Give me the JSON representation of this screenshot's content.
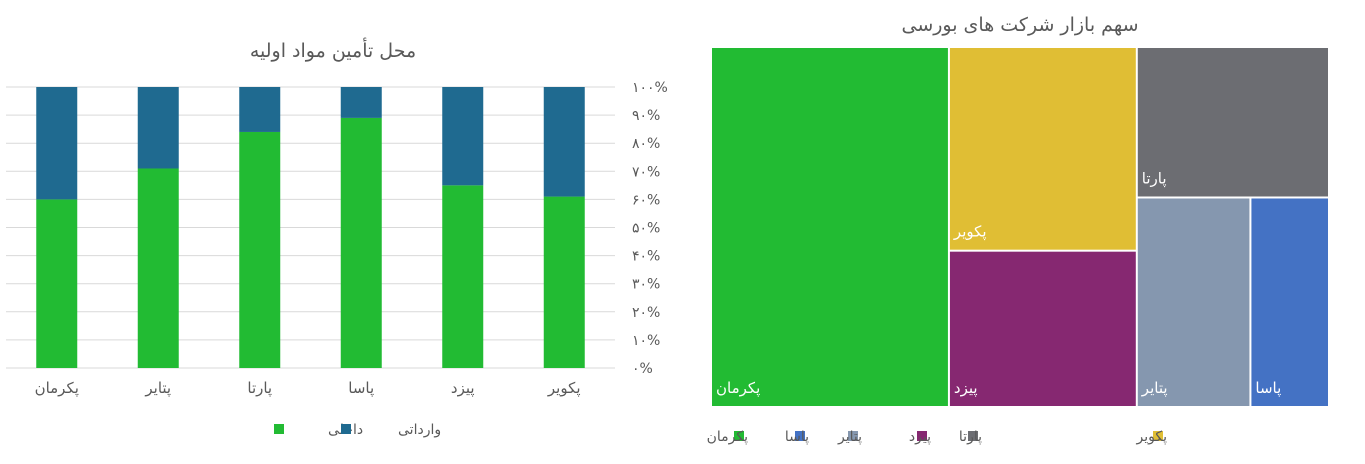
{
  "chart_data": [
    {
      "type": "bar",
      "stacked": "percent",
      "title": "محل تأمین مواد اولیه",
      "categories": [
        "پکرمان",
        "پتایر",
        "پارتا",
        "پاسا",
        "پیزد",
        "پکویر"
      ],
      "series": [
        {
          "name": "داخلی",
          "color": "#22BB33",
          "values": [
            60,
            71,
            84,
            89,
            65,
            61
          ]
        },
        {
          "name": "وارداتی",
          "color": "#1F6A90",
          "values": [
            40,
            29,
            16,
            11,
            35,
            39
          ]
        }
      ],
      "ylim": [
        0,
        100
      ],
      "yticks": [
        "۰%",
        "۱۰%",
        "۲۰%",
        "۳۰%",
        "۴۰%",
        "۵۰%",
        "۶۰%",
        "۷۰%",
        "۸۰%",
        "۹۰%",
        "۱۰۰%"
      ],
      "grid": true,
      "legend": "bottom"
    },
    {
      "type": "treemap",
      "title": "سهم بازار شرکت های بورسی",
      "items": [
        {
          "name": "پکرمان",
          "color": "#22BB33",
          "share": 38.5
        },
        {
          "name": "پکویر",
          "color": "#E0BE34",
          "share": 17.2
        },
        {
          "name": "پیزد",
          "color": "#862871",
          "share": 13.2
        },
        {
          "name": "پارتا",
          "color": "#6C6D72",
          "share": 13.0
        },
        {
          "name": "پتایر",
          "color": "#8597AF",
          "share": 10.7
        },
        {
          "name": "پاسا",
          "color": "#4472C4",
          "share": 7.4
        }
      ],
      "legend": "bottom",
      "legend_order": [
        "پتایر",
        "پاسا",
        "پکرمان",
        "پارتا",
        "پیزد",
        "پکویر"
      ]
    }
  ]
}
